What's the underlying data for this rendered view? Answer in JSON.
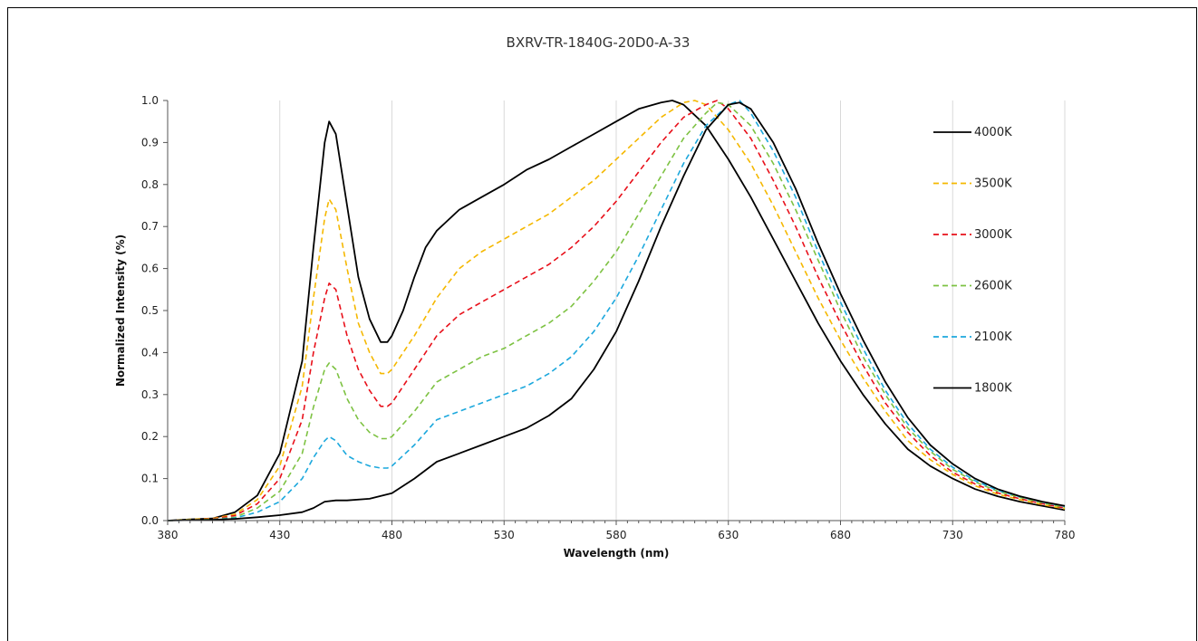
{
  "chart_data": {
    "type": "line",
    "title": "BXRV-TR-1840G-20D0-A-33",
    "xlabel": "Wavelength (nm)",
    "ylabel": "Normalized Intensity (%)",
    "xlim": [
      380,
      780
    ],
    "ylim": [
      0,
      1.0
    ],
    "xticks": [
      380,
      430,
      480,
      530,
      580,
      630,
      680,
      730,
      780
    ],
    "xtick_labels": [
      "380",
      "430",
      "480",
      "530",
      "580",
      "630",
      "680",
      "730",
      "780"
    ],
    "yticks": [
      0,
      0.1,
      0.2,
      0.3,
      0.4,
      0.5,
      0.6,
      0.7,
      0.8,
      0.9,
      1.0
    ],
    "ytick_labels": [
      "0.0",
      "0.1",
      "0.2",
      "0.3",
      "0.4",
      "0.5",
      "0.6",
      "0.7",
      "0.8",
      "0.9",
      "1.0"
    ],
    "grid": "vertical",
    "legend_position": "right",
    "series": [
      {
        "name": "4000K",
        "color": "#000000",
        "dash": "solid",
        "points": [
          [
            380,
            0
          ],
          [
            390,
            0.003
          ],
          [
            400,
            0.005
          ],
          [
            410,
            0.02
          ],
          [
            420,
            0.06
          ],
          [
            430,
            0.16
          ],
          [
            440,
            0.38
          ],
          [
            445,
            0.65
          ],
          [
            450,
            0.9
          ],
          [
            452,
            0.95
          ],
          [
            455,
            0.92
          ],
          [
            460,
            0.75
          ],
          [
            465,
            0.58
          ],
          [
            470,
            0.48
          ],
          [
            475,
            0.425
          ],
          [
            478,
            0.425
          ],
          [
            480,
            0.44
          ],
          [
            485,
            0.5
          ],
          [
            490,
            0.58
          ],
          [
            495,
            0.65
          ],
          [
            500,
            0.69
          ],
          [
            510,
            0.74
          ],
          [
            520,
            0.77
          ],
          [
            530,
            0.8
          ],
          [
            540,
            0.835
          ],
          [
            550,
            0.86
          ],
          [
            560,
            0.89
          ],
          [
            570,
            0.92
          ],
          [
            580,
            0.95
          ],
          [
            590,
            0.98
          ],
          [
            600,
            0.995
          ],
          [
            605,
            1.0
          ],
          [
            610,
            0.99
          ],
          [
            620,
            0.94
          ],
          [
            630,
            0.86
          ],
          [
            640,
            0.77
          ],
          [
            650,
            0.67
          ],
          [
            660,
            0.57
          ],
          [
            670,
            0.47
          ],
          [
            680,
            0.38
          ],
          [
            690,
            0.3
          ],
          [
            700,
            0.23
          ],
          [
            710,
            0.17
          ],
          [
            720,
            0.13
          ],
          [
            730,
            0.1
          ],
          [
            740,
            0.075
          ],
          [
            750,
            0.058
          ],
          [
            760,
            0.045
          ],
          [
            770,
            0.035
          ],
          [
            780,
            0.025
          ]
        ]
      },
      {
        "name": "3500K",
        "color": "#F5B800",
        "dash": "dashed",
        "points": [
          [
            380,
            0
          ],
          [
            390,
            0.003
          ],
          [
            400,
            0.005
          ],
          [
            410,
            0.015
          ],
          [
            420,
            0.05
          ],
          [
            430,
            0.13
          ],
          [
            440,
            0.32
          ],
          [
            445,
            0.53
          ],
          [
            450,
            0.72
          ],
          [
            452,
            0.765
          ],
          [
            455,
            0.74
          ],
          [
            460,
            0.6
          ],
          [
            465,
            0.47
          ],
          [
            470,
            0.4
          ],
          [
            475,
            0.35
          ],
          [
            478,
            0.35
          ],
          [
            480,
            0.36
          ],
          [
            490,
            0.44
          ],
          [
            500,
            0.53
          ],
          [
            510,
            0.6
          ],
          [
            520,
            0.64
          ],
          [
            530,
            0.67
          ],
          [
            540,
            0.7
          ],
          [
            550,
            0.73
          ],
          [
            560,
            0.77
          ],
          [
            570,
            0.81
          ],
          [
            580,
            0.86
          ],
          [
            590,
            0.91
          ],
          [
            600,
            0.96
          ],
          [
            610,
            0.995
          ],
          [
            615,
            1.0
          ],
          [
            620,
            0.99
          ],
          [
            630,
            0.93
          ],
          [
            640,
            0.85
          ],
          [
            650,
            0.75
          ],
          [
            660,
            0.64
          ],
          [
            670,
            0.53
          ],
          [
            680,
            0.43
          ],
          [
            690,
            0.34
          ],
          [
            700,
            0.26
          ],
          [
            710,
            0.19
          ],
          [
            720,
            0.145
          ],
          [
            730,
            0.11
          ],
          [
            740,
            0.083
          ],
          [
            750,
            0.063
          ],
          [
            760,
            0.05
          ],
          [
            770,
            0.038
          ],
          [
            780,
            0.028
          ]
        ]
      },
      {
        "name": "3000K",
        "color": "#E8101A",
        "dash": "dashed",
        "points": [
          [
            380,
            0
          ],
          [
            390,
            0.002
          ],
          [
            400,
            0.004
          ],
          [
            410,
            0.012
          ],
          [
            420,
            0.04
          ],
          [
            430,
            0.1
          ],
          [
            440,
            0.24
          ],
          [
            445,
            0.4
          ],
          [
            450,
            0.53
          ],
          [
            452,
            0.565
          ],
          [
            455,
            0.55
          ],
          [
            460,
            0.44
          ],
          [
            465,
            0.36
          ],
          [
            470,
            0.31
          ],
          [
            475,
            0.272
          ],
          [
            478,
            0.272
          ],
          [
            480,
            0.28
          ],
          [
            490,
            0.36
          ],
          [
            500,
            0.44
          ],
          [
            510,
            0.49
          ],
          [
            520,
            0.52
          ],
          [
            530,
            0.55
          ],
          [
            540,
            0.58
          ],
          [
            550,
            0.61
          ],
          [
            560,
            0.65
          ],
          [
            570,
            0.7
          ],
          [
            580,
            0.76
          ],
          [
            590,
            0.83
          ],
          [
            600,
            0.9
          ],
          [
            610,
            0.96
          ],
          [
            620,
            0.99
          ],
          [
            625,
            1.0
          ],
          [
            630,
            0.98
          ],
          [
            640,
            0.91
          ],
          [
            650,
            0.81
          ],
          [
            660,
            0.7
          ],
          [
            670,
            0.58
          ],
          [
            680,
            0.47
          ],
          [
            690,
            0.37
          ],
          [
            700,
            0.28
          ],
          [
            710,
            0.21
          ],
          [
            720,
            0.155
          ],
          [
            730,
            0.115
          ],
          [
            740,
            0.087
          ],
          [
            750,
            0.066
          ],
          [
            760,
            0.052
          ],
          [
            770,
            0.04
          ],
          [
            780,
            0.03
          ]
        ]
      },
      {
        "name": "2600K",
        "color": "#7DC242",
        "dash": "dashed",
        "points": [
          [
            380,
            0
          ],
          [
            390,
            0.002
          ],
          [
            400,
            0.003
          ],
          [
            410,
            0.008
          ],
          [
            420,
            0.03
          ],
          [
            430,
            0.07
          ],
          [
            440,
            0.16
          ],
          [
            445,
            0.27
          ],
          [
            450,
            0.36
          ],
          [
            452,
            0.375
          ],
          [
            455,
            0.36
          ],
          [
            460,
            0.29
          ],
          [
            465,
            0.24
          ],
          [
            470,
            0.21
          ],
          [
            475,
            0.195
          ],
          [
            478,
            0.195
          ],
          [
            480,
            0.2
          ],
          [
            490,
            0.26
          ],
          [
            500,
            0.33
          ],
          [
            510,
            0.36
          ],
          [
            520,
            0.39
          ],
          [
            530,
            0.41
          ],
          [
            540,
            0.44
          ],
          [
            550,
            0.47
          ],
          [
            560,
            0.51
          ],
          [
            570,
            0.57
          ],
          [
            580,
            0.64
          ],
          [
            590,
            0.73
          ],
          [
            600,
            0.82
          ],
          [
            610,
            0.91
          ],
          [
            620,
            0.97
          ],
          [
            625,
            0.995
          ],
          [
            630,
            0.99
          ],
          [
            640,
            0.94
          ],
          [
            650,
            0.85
          ],
          [
            660,
            0.74
          ],
          [
            670,
            0.62
          ],
          [
            680,
            0.5
          ],
          [
            690,
            0.39
          ],
          [
            700,
            0.3
          ],
          [
            710,
            0.22
          ],
          [
            720,
            0.165
          ],
          [
            730,
            0.122
          ],
          [
            740,
            0.092
          ],
          [
            750,
            0.07
          ],
          [
            760,
            0.055
          ],
          [
            770,
            0.042
          ],
          [
            780,
            0.032
          ]
        ]
      },
      {
        "name": "2100K",
        "color": "#1CA8DD",
        "dash": "dashed",
        "points": [
          [
            380,
            0
          ],
          [
            390,
            0.001
          ],
          [
            400,
            0.002
          ],
          [
            410,
            0.006
          ],
          [
            420,
            0.02
          ],
          [
            430,
            0.045
          ],
          [
            440,
            0.1
          ],
          [
            445,
            0.15
          ],
          [
            450,
            0.19
          ],
          [
            452,
            0.2
          ],
          [
            455,
            0.19
          ],
          [
            460,
            0.155
          ],
          [
            465,
            0.14
          ],
          [
            470,
            0.13
          ],
          [
            475,
            0.125
          ],
          [
            478,
            0.125
          ],
          [
            480,
            0.13
          ],
          [
            490,
            0.18
          ],
          [
            500,
            0.24
          ],
          [
            510,
            0.26
          ],
          [
            520,
            0.28
          ],
          [
            530,
            0.3
          ],
          [
            540,
            0.32
          ],
          [
            550,
            0.35
          ],
          [
            560,
            0.39
          ],
          [
            570,
            0.45
          ],
          [
            580,
            0.53
          ],
          [
            590,
            0.63
          ],
          [
            600,
            0.74
          ],
          [
            610,
            0.85
          ],
          [
            620,
            0.94
          ],
          [
            630,
            0.99
          ],
          [
            635,
            1.0
          ],
          [
            640,
            0.97
          ],
          [
            650,
            0.88
          ],
          [
            660,
            0.77
          ],
          [
            670,
            0.64
          ],
          [
            680,
            0.52
          ],
          [
            690,
            0.41
          ],
          [
            700,
            0.31
          ],
          [
            710,
            0.23
          ],
          [
            720,
            0.17
          ],
          [
            730,
            0.127
          ],
          [
            740,
            0.095
          ],
          [
            750,
            0.072
          ],
          [
            760,
            0.057
          ],
          [
            770,
            0.044
          ],
          [
            780,
            0.034
          ]
        ]
      },
      {
        "name": "1800K",
        "color": "#000000",
        "dash": "solid",
        "points": [
          [
            380,
            0
          ],
          [
            390,
            0.001
          ],
          [
            400,
            0.002
          ],
          [
            410,
            0.004
          ],
          [
            420,
            0.008
          ],
          [
            430,
            0.013
          ],
          [
            440,
            0.02
          ],
          [
            445,
            0.03
          ],
          [
            450,
            0.045
          ],
          [
            455,
            0.048
          ],
          [
            460,
            0.048
          ],
          [
            470,
            0.052
          ],
          [
            480,
            0.065
          ],
          [
            490,
            0.1
          ],
          [
            500,
            0.14
          ],
          [
            510,
            0.16
          ],
          [
            520,
            0.18
          ],
          [
            530,
            0.2
          ],
          [
            540,
            0.22
          ],
          [
            550,
            0.25
          ],
          [
            560,
            0.29
          ],
          [
            570,
            0.36
          ],
          [
            580,
            0.45
          ],
          [
            590,
            0.57
          ],
          [
            600,
            0.7
          ],
          [
            610,
            0.82
          ],
          [
            620,
            0.93
          ],
          [
            630,
            0.99
          ],
          [
            635,
            0.995
          ],
          [
            640,
            0.98
          ],
          [
            650,
            0.9
          ],
          [
            660,
            0.79
          ],
          [
            670,
            0.66
          ],
          [
            680,
            0.54
          ],
          [
            690,
            0.43
          ],
          [
            700,
            0.33
          ],
          [
            710,
            0.245
          ],
          [
            720,
            0.18
          ],
          [
            730,
            0.135
          ],
          [
            740,
            0.1
          ],
          [
            750,
            0.075
          ],
          [
            760,
            0.058
          ],
          [
            770,
            0.045
          ],
          [
            780,
            0.035
          ]
        ]
      }
    ]
  }
}
